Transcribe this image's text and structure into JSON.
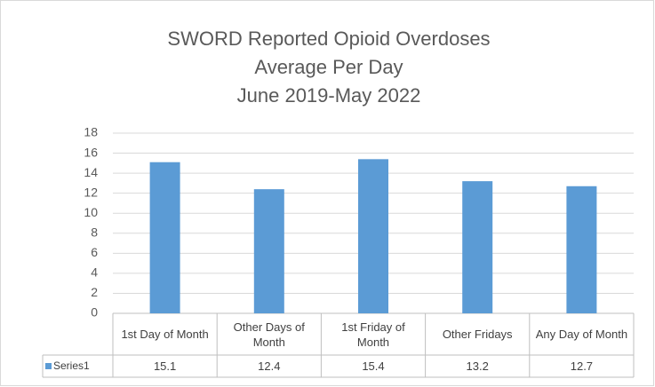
{
  "chart_data": {
    "type": "bar",
    "title": [
      "SWORD Reported Opioid Overdoses",
      "Average Per Day",
      "June 2019-May 2022"
    ],
    "categories": [
      "1st Day of Month",
      "Other Days of Month",
      "1st Friday of Month",
      "Other Fridays",
      "Any Day of Month"
    ],
    "series": [
      {
        "name": "Series1",
        "color": "#5b9bd5",
        "values": [
          15.1,
          12.4,
          15.4,
          13.2,
          12.7
        ]
      }
    ],
    "ylim": [
      0,
      18
    ],
    "yticks": [
      0,
      2,
      4,
      6,
      8,
      10,
      12,
      14,
      16,
      18
    ],
    "grid": true,
    "data_table": true
  }
}
